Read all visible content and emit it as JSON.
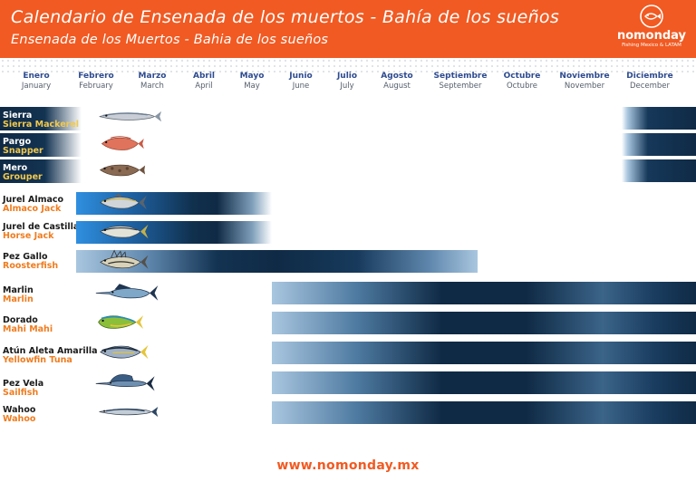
{
  "header": {
    "title": "Calendario de Ensenada de los muertos - Bahía de los sueños",
    "subtitle": "Ensenada de los Muertos - Bahia de los sueños",
    "brand_name": "nomonday",
    "brand_tagline": "Fishing Mexico & LATAM"
  },
  "colors": {
    "header_bg": "#f15a22",
    "bar_dark": "#0f2a45",
    "bar_light": "#7fb2d9",
    "early_bar_blue": "#2f8fe0",
    "accent_orange": "#f07c1f",
    "accent_yellow": "#f2c94c"
  },
  "months": [
    {
      "es": "Enero",
      "en": "January"
    },
    {
      "es": "Febrero",
      "en": "February"
    },
    {
      "es": "Marzo",
      "en": "March"
    },
    {
      "es": "Abril",
      "en": "April"
    },
    {
      "es": "Mayo",
      "en": "May"
    },
    {
      "es": "Junio",
      "en": "June"
    },
    {
      "es": "Julio",
      "en": "July"
    },
    {
      "es": "Agosto",
      "en": "August"
    },
    {
      "es": "Septiembre",
      "en": "September"
    },
    {
      "es": "Octubre",
      "en": "Octubre"
    },
    {
      "es": "Noviembre",
      "en": "November"
    },
    {
      "es": "Diciembre",
      "en": "December"
    }
  ],
  "species": [
    {
      "es": "Sierra",
      "en": "Sierra Mackerel",
      "icon": "sierra-mackerel-icon",
      "season": "December - January"
    },
    {
      "es": "Pargo",
      "en": "Snapper",
      "icon": "snapper-icon",
      "season": "December - January"
    },
    {
      "es": "Mero",
      "en": "Grouper",
      "icon": "grouper-icon",
      "season": "December - January"
    },
    {
      "es": "Jurel Almaco",
      "en": "Almaco Jack",
      "icon": "almaco-jack-icon",
      "season": "January - May"
    },
    {
      "es": "Jurel de Castilla",
      "en": "Horse Jack",
      "icon": "horse-jack-icon",
      "season": "January - May"
    },
    {
      "es": "Pez Gallo",
      "en": "Roosterfish",
      "icon": "roosterfish-icon",
      "season": "January - September"
    },
    {
      "es": "Marlin",
      "en": "Marlin",
      "icon": "marlin-icon",
      "season": "June - December"
    },
    {
      "es": "Dorado",
      "en": "Mahi Mahi",
      "icon": "mahi-mahi-icon",
      "season": "June - December"
    },
    {
      "es": "Atún Aleta Amarilla",
      "en": "Yellowfin Tuna",
      "icon": "yellowfin-tuna-icon",
      "season": "June - December"
    },
    {
      "es": "Pez Vela",
      "en": "Sailfish",
      "icon": "sailfish-icon",
      "season": "June - December"
    },
    {
      "es": "Wahoo",
      "en": "Wahoo",
      "icon": "wahoo-icon",
      "season": "June - December"
    }
  ],
  "footer": {
    "url": "www.nomonday.mx"
  }
}
